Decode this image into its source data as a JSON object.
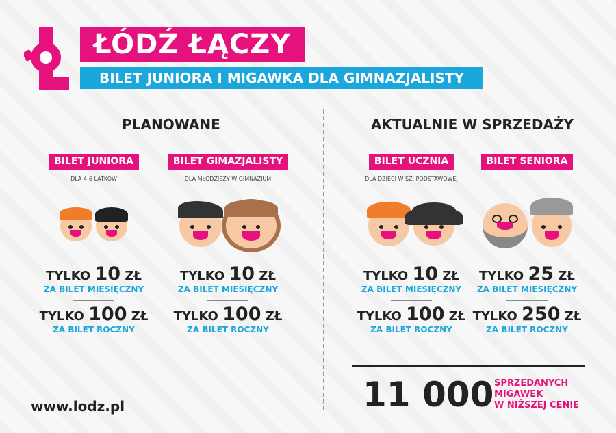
{
  "header": {
    "title": "ŁÓDŹ ŁĄCZY",
    "subtitle": "BILET JUNIORA I MIGAWKA DLA GIMNAZJALISTY"
  },
  "colors": {
    "pink": "#e5127d",
    "blue": "#1ba6dc",
    "dark": "#222222"
  },
  "sections": {
    "planned": "PLANOWANE",
    "current": "AKTUALNIE W SPRZEDAŻY"
  },
  "tickets": [
    {
      "name": "BILET JUNIORA",
      "desc": "DLA 4-6 LATKÓW",
      "prefix": "TYLKO",
      "monthly": "10",
      "yearly": "100",
      "currency": "ZŁ",
      "monthly_label": "ZA BILET MIESIĘCZNY",
      "yearly_label": "ZA BILET ROCZNY"
    },
    {
      "name": "BILET GIMAZJALISTY",
      "desc": "DLA MŁODZIEŻY W GIMNAZJUM",
      "prefix": "TYLKO",
      "monthly": "10",
      "yearly": "100",
      "currency": "ZŁ",
      "monthly_label": "ZA BILET MIESIĘCZNY",
      "yearly_label": "ZA BILET ROCZNY"
    },
    {
      "name": "BILET UCZNIA",
      "desc": "DLA DZIECI W SZ. PODSTAWOWEJ",
      "prefix": "TYLKO",
      "monthly": "10",
      "yearly": "100",
      "currency": "ZŁ",
      "monthly_label": "ZA BILET MIESIĘCZNY",
      "yearly_label": "ZA BILET ROCZNY"
    },
    {
      "name": "BILET SENIORA",
      "desc": "",
      "prefix": "TYLKO",
      "monthly": "25",
      "yearly": "250",
      "currency": "ZŁ",
      "monthly_label": "ZA BILET MIESIĘCZNY",
      "yearly_label": "ZA BILET ROCZNY"
    }
  ],
  "stats": {
    "count": "11 000",
    "label_1": "SPRZEDANYCH",
    "label_2": "MIGAWEK",
    "label_3": "W NIŻSZEJ CENIE"
  },
  "footer": {
    "url": "www.lodz.pl"
  }
}
